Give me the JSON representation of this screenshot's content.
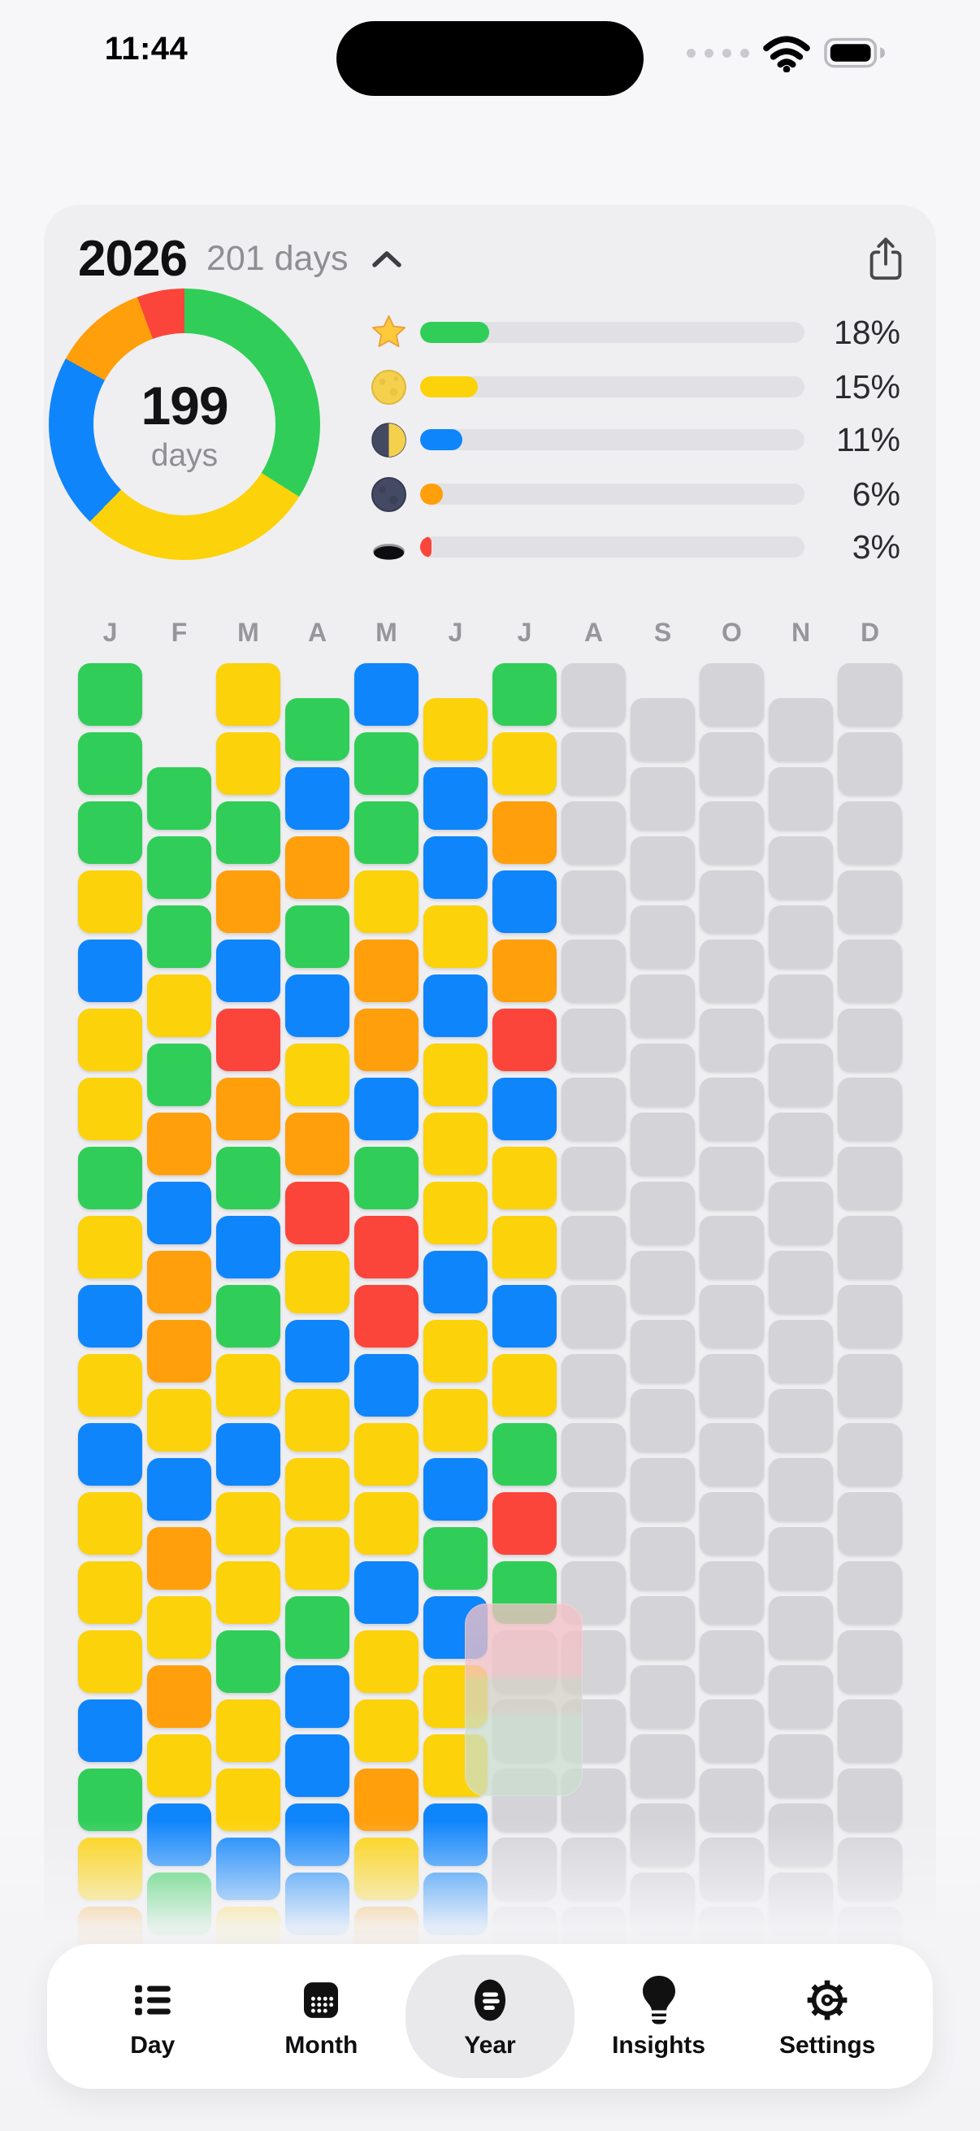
{
  "status_bar": {
    "time": "11:44"
  },
  "palette": {
    "green": "#30CE58",
    "yellow": "#FCD20A",
    "blue": "#0F85FB",
    "orange": "#FF9F0C",
    "red": "#FB453B",
    "gray": "#D3D3D8",
    "track": "#E1E1E5",
    "card_bg": "#EFEFF1",
    "tab_selected_bg": "#E9E9EB"
  },
  "header": {
    "year": "2026",
    "subtitle": "201 days"
  },
  "summary": {
    "donut": {
      "center_value": "199",
      "center_label": "days",
      "segments": [
        {
          "label": "star",
          "color": "green",
          "value": 18
        },
        {
          "label": "full-moon",
          "color": "yellow",
          "value": 15
        },
        {
          "label": "half-moon",
          "color": "blue",
          "value": 11
        },
        {
          "label": "new-moon",
          "color": "orange",
          "value": 6
        },
        {
          "label": "hole",
          "color": "red",
          "value": 3
        }
      ]
    },
    "legend": [
      {
        "icon": "star-icon",
        "color": "green",
        "percent": "18%",
        "value": 18
      },
      {
        "icon": "full-moon-icon",
        "color": "yellow",
        "percent": "15%",
        "value": 15
      },
      {
        "icon": "half-moon-icon",
        "color": "blue",
        "percent": "11%",
        "value": 11
      },
      {
        "icon": "new-moon-icon",
        "color": "orange",
        "percent": "6%",
        "value": 6
      },
      {
        "icon": "hole-icon",
        "color": "red",
        "percent": "3%",
        "value": 3
      }
    ]
  },
  "chart_data": {
    "type": "pie",
    "labels": [
      "star",
      "full-moon",
      "half-moon",
      "new-moon",
      "hole"
    ],
    "values": [
      18,
      15,
      11,
      6,
      3
    ],
    "unit": "%",
    "center_text": "199 days"
  },
  "year_grid": {
    "month_labels": [
      "J",
      "F",
      "M",
      "A",
      "M",
      "J",
      "J",
      "A",
      "S",
      "O",
      "N",
      "D"
    ],
    "row_offsets": [
      0,
      1.5,
      0,
      0.5,
      0,
      0.5,
      0,
      0,
      0.5,
      0,
      0.5,
      0
    ],
    "months": [
      {
        "label": "J",
        "days": [
          "green",
          "green",
          "green",
          "yellow",
          "blue",
          "yellow",
          "yellow",
          "green",
          "yellow",
          "blue",
          "yellow",
          "blue",
          "yellow",
          "yellow",
          "yellow",
          "blue",
          "green",
          "yellow",
          "orange"
        ]
      },
      {
        "label": "F",
        "days": [
          "green",
          "green",
          "green",
          "yellow",
          "green",
          "orange",
          "blue",
          "orange",
          "orange",
          "yellow",
          "blue",
          "orange",
          "yellow",
          "orange",
          "yellow",
          "blue",
          "green"
        ]
      },
      {
        "label": "M",
        "days": [
          "yellow",
          "yellow",
          "green",
          "orange",
          "blue",
          "red",
          "orange",
          "green",
          "blue",
          "green",
          "yellow",
          "blue",
          "yellow",
          "yellow",
          "green",
          "yellow",
          "yellow",
          "blue",
          "yellow"
        ]
      },
      {
        "label": "A",
        "days": [
          "green",
          "blue",
          "orange",
          "green",
          "blue",
          "yellow",
          "orange",
          "red",
          "yellow",
          "blue",
          "yellow",
          "yellow",
          "yellow",
          "green",
          "blue",
          "blue",
          "blue",
          "blue"
        ]
      },
      {
        "label": "M",
        "days": [
          "blue",
          "green",
          "green",
          "yellow",
          "orange",
          "orange",
          "blue",
          "green",
          "red",
          "red",
          "blue",
          "yellow",
          "yellow",
          "blue",
          "yellow",
          "yellow",
          "orange",
          "yellow",
          "orange"
        ]
      },
      {
        "label": "J",
        "days": [
          "yellow",
          "blue",
          "blue",
          "yellow",
          "blue",
          "yellow",
          "yellow",
          "yellow",
          "blue",
          "yellow",
          "yellow",
          "blue",
          "green",
          "blue",
          "yellow",
          "yellow",
          "blue",
          "blue"
        ]
      },
      {
        "label": "J",
        "days": [
          "green",
          "yellow",
          "orange",
          "blue",
          "orange",
          "red",
          "blue",
          "yellow",
          "yellow",
          "blue",
          "yellow",
          "green",
          "red",
          "green",
          "gray",
          "gray",
          "gray",
          "gray",
          "gray"
        ]
      },
      {
        "label": "A",
        "days": [
          "gray",
          "gray",
          "gray",
          "gray",
          "gray",
          "gray",
          "gray",
          "gray",
          "gray",
          "gray",
          "gray",
          "gray",
          "gray",
          "gray",
          "gray",
          "gray",
          "gray",
          "gray",
          "gray"
        ]
      },
      {
        "label": "S",
        "days": [
          "gray",
          "gray",
          "gray",
          "gray",
          "gray",
          "gray",
          "gray",
          "gray",
          "gray",
          "gray",
          "gray",
          "gray",
          "gray",
          "gray",
          "gray",
          "gray",
          "gray",
          "gray"
        ]
      },
      {
        "label": "O",
        "days": [
          "gray",
          "gray",
          "gray",
          "gray",
          "gray",
          "gray",
          "gray",
          "gray",
          "gray",
          "gray",
          "gray",
          "gray",
          "gray",
          "gray",
          "gray",
          "gray",
          "gray",
          "gray",
          "gray"
        ]
      },
      {
        "label": "N",
        "days": [
          "gray",
          "gray",
          "gray",
          "gray",
          "gray",
          "gray",
          "gray",
          "gray",
          "gray",
          "gray",
          "gray",
          "gray",
          "gray",
          "gray",
          "gray",
          "gray",
          "gray",
          "gray"
        ]
      },
      {
        "label": "D",
        "days": [
          "gray",
          "gray",
          "gray",
          "gray",
          "gray",
          "gray",
          "gray",
          "gray",
          "gray",
          "gray",
          "gray",
          "gray",
          "gray",
          "gray",
          "gray",
          "gray",
          "gray",
          "gray",
          "gray"
        ]
      }
    ]
  },
  "tab_bar": {
    "items": [
      {
        "id": "day",
        "label": "Day",
        "icon": "list-icon",
        "selected": false
      },
      {
        "id": "month",
        "label": "Month",
        "icon": "calendar-icon",
        "selected": false
      },
      {
        "id": "year",
        "label": "Year",
        "icon": "year-chart-icon",
        "selected": true
      },
      {
        "id": "insights",
        "label": "Insights",
        "icon": "lightbulb-icon",
        "selected": false
      },
      {
        "id": "settings",
        "label": "Settings",
        "icon": "gear-icon",
        "selected": false
      }
    ]
  }
}
